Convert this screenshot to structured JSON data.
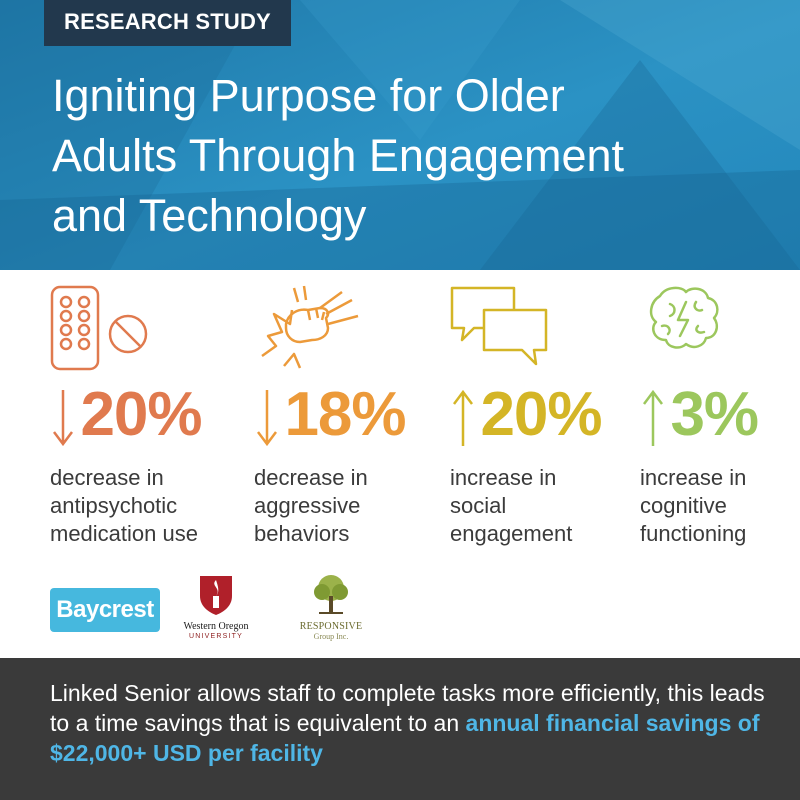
{
  "header": {
    "tag": "RESEARCH STUDY",
    "title_lines": [
      "Igniting Purpose for Older",
      "Adults Through Engagement",
      "and Technology"
    ]
  },
  "stats": [
    {
      "direction": "down",
      "value": "20%",
      "desc": [
        "decrease in",
        "antipsychotic",
        "medication use"
      ],
      "color": "#e07a4e",
      "icon": "pills-icon"
    },
    {
      "direction": "down",
      "value": "18%",
      "desc": [
        "decrease in",
        "aggressive",
        "behaviors"
      ],
      "color": "#ec9a3a",
      "icon": "fist-icon"
    },
    {
      "direction": "up",
      "value": "20%",
      "desc": [
        "increase in",
        "social",
        "engagement"
      ],
      "color": "#d4b526",
      "icon": "chat-bubbles-icon"
    },
    {
      "direction": "up",
      "value": "3%",
      "desc": [
        "increase in",
        "cognitive",
        "functioning"
      ],
      "color": "#9cc75d",
      "icon": "brain-icon"
    }
  ],
  "logos": {
    "baycrest": "Baycrest",
    "wou_name": "Western Oregon",
    "wou_sub": "UNIVERSITY",
    "responsive_name": "RESPONSIVE",
    "responsive_sub": "Group Inc."
  },
  "footer": {
    "text_plain": "Linked Senior allows staff to complete tasks more efficiently, this leads to a time savings that is equivalent to an ",
    "text_highlight": "annual financial savings of $22,000+ USD per facility",
    "highlight_color": "#4fb6e6"
  }
}
